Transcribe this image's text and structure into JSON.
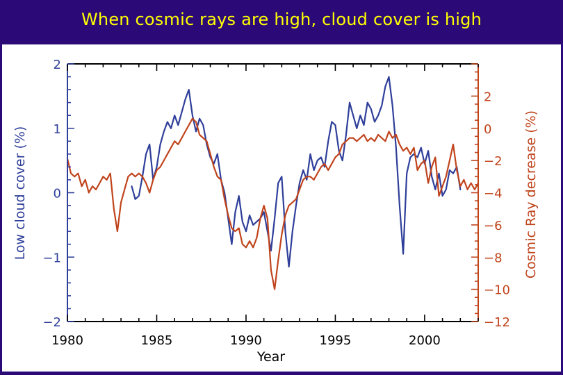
{
  "slide": {
    "title": "When cosmic rays are high, cloud cover is high"
  },
  "colors": {
    "title_bar": "#2b0a78",
    "title_text": "#ffff00",
    "cloud_series": "#2f3f9a",
    "cosmic_series": "#c0441c",
    "axis_black": "#000000"
  },
  "chart_data": {
    "type": "line",
    "xlabel": "Year",
    "ylabel_left": "Low cloud cover (%)",
    "ylabel_right": "Cosmic Ray decrease (%)",
    "xlim": [
      1980,
      2003
    ],
    "ylim_left": [
      -2,
      2
    ],
    "ylim_right": [
      -12,
      4
    ],
    "x_ticks": [
      1980,
      1985,
      1990,
      1995,
      2000
    ],
    "y_ticks_left": [
      "2",
      "1",
      "0",
      "−1",
      "−2"
    ],
    "y_ticks_left_values": [
      2,
      1,
      0,
      -1,
      -2
    ],
    "y_ticks_right": [
      "2",
      "0",
      "−2",
      "−4",
      "−6",
      "−8",
      "−10",
      "−12"
    ],
    "y_ticks_right_values": [
      2,
      0,
      -2,
      -4,
      -6,
      -8,
      -10,
      -12
    ],
    "grid": false,
    "legend": "none",
    "series": [
      {
        "axis": "left",
        "color": "#2f3f9a",
        "x": [
          1983.6,
          1983.8,
          1984.0,
          1984.2,
          1984.4,
          1984.6,
          1984.8,
          1985.0,
          1985.2,
          1985.4,
          1985.6,
          1985.8,
          1986.0,
          1986.2,
          1986.4,
          1986.6,
          1986.8,
          1987.0,
          1987.2,
          1987.4,
          1987.6,
          1987.8,
          1988.0,
          1988.2,
          1988.4,
          1988.6,
          1988.8,
          1989.0,
          1989.2,
          1989.4,
          1989.6,
          1989.8,
          1990.0,
          1990.2,
          1990.4,
          1990.6,
          1990.8,
          1991.0,
          1991.2,
          1991.4,
          1991.6,
          1991.8,
          1992.0,
          1992.2,
          1992.4,
          1992.6,
          1992.8,
          1993.0,
          1993.2,
          1993.4,
          1993.6,
          1993.8,
          1994.0,
          1994.2,
          1994.4,
          1994.6,
          1994.8,
          1995.0,
          1995.2,
          1995.4,
          1995.6,
          1995.8,
          1996.0,
          1996.2,
          1996.4,
          1996.6,
          1996.8,
          1997.0,
          1997.2,
          1997.4,
          1997.6,
          1997.8,
          1998.0,
          1998.2,
          1998.4,
          1998.6,
          1998.8,
          1999.0,
          1999.2,
          1999.4,
          1999.6,
          1999.8,
          2000.0,
          2000.2,
          2000.4,
          2000.6,
          2000.8,
          2001.0,
          2001.2,
          2001.4,
          2001.6,
          2001.8,
          2002.0
        ],
        "values": [
          0.1,
          -0.1,
          -0.05,
          0.25,
          0.6,
          0.75,
          0.2,
          0.4,
          0.75,
          0.95,
          1.1,
          1.0,
          1.2,
          1.05,
          1.25,
          1.45,
          1.6,
          1.2,
          0.95,
          1.15,
          1.05,
          0.75,
          0.55,
          0.45,
          0.6,
          0.2,
          0.0,
          -0.4,
          -0.8,
          -0.3,
          -0.05,
          -0.45,
          -0.6,
          -0.35,
          -0.5,
          -0.45,
          -0.4,
          -0.3,
          -0.6,
          -0.9,
          -0.4,
          0.15,
          0.25,
          -0.6,
          -1.15,
          -0.6,
          -0.2,
          0.15,
          0.35,
          0.2,
          0.6,
          0.35,
          0.5,
          0.55,
          0.4,
          0.8,
          1.1,
          1.05,
          0.65,
          0.5,
          0.9,
          1.4,
          1.2,
          1.0,
          1.2,
          1.05,
          1.4,
          1.3,
          1.1,
          1.2,
          1.35,
          1.65,
          1.8,
          1.35,
          0.7,
          -0.2,
          -0.95,
          0.3,
          0.55,
          0.6,
          0.55,
          0.7,
          0.45,
          0.65,
          0.25,
          0.05,
          0.3,
          -0.05,
          0.05,
          0.35,
          0.3,
          0.4,
          0.05
        ]
      },
      {
        "axis": "right",
        "color": "#c0441c",
        "x": [
          1980.0,
          1980.2,
          1980.4,
          1980.6,
          1980.8,
          1981.0,
          1981.2,
          1981.4,
          1981.6,
          1981.8,
          1982.0,
          1982.2,
          1982.4,
          1982.6,
          1982.8,
          1983.0,
          1983.2,
          1983.4,
          1983.6,
          1983.8,
          1984.0,
          1984.2,
          1984.4,
          1984.6,
          1984.8,
          1985.0,
          1985.2,
          1985.4,
          1985.6,
          1985.8,
          1986.0,
          1986.2,
          1986.4,
          1986.6,
          1986.8,
          1987.0,
          1987.2,
          1987.4,
          1987.6,
          1987.8,
          1988.0,
          1988.2,
          1988.4,
          1988.6,
          1988.8,
          1989.0,
          1989.2,
          1989.4,
          1989.6,
          1989.8,
          1990.0,
          1990.2,
          1990.4,
          1990.6,
          1990.8,
          1991.0,
          1991.2,
          1991.4,
          1991.6,
          1991.8,
          1992.0,
          1992.2,
          1992.4,
          1992.6,
          1992.8,
          1993.0,
          1993.2,
          1993.4,
          1993.6,
          1993.8,
          1994.0,
          1994.2,
          1994.4,
          1994.6,
          1994.8,
          1995.0,
          1995.2,
          1995.4,
          1995.6,
          1995.8,
          1996.0,
          1996.2,
          1996.4,
          1996.6,
          1996.8,
          1997.0,
          1997.2,
          1997.4,
          1997.6,
          1997.8,
          1998.0,
          1998.2,
          1998.4,
          1998.6,
          1998.8,
          1999.0,
          1999.2,
          1999.4,
          1999.6,
          1999.8,
          2000.0,
          2000.2,
          2000.4,
          2000.6,
          2000.8,
          2001.0,
          2001.2,
          2001.4,
          2001.6,
          2001.8,
          2002.0,
          2002.2,
          2002.4,
          2002.6,
          2002.8,
          2003.0
        ],
        "values": [
          -1.9,
          -2.8,
          -3.0,
          -2.8,
          -3.6,
          -3.2,
          -4.0,
          -3.6,
          -3.8,
          -3.4,
          -3.0,
          -3.2,
          -2.8,
          -5.0,
          -6.4,
          -4.6,
          -3.8,
          -3.0,
          -2.8,
          -3.0,
          -2.8,
          -3.0,
          -3.4,
          -4.0,
          -3.2,
          -2.6,
          -2.4,
          -2.0,
          -1.6,
          -1.2,
          -0.8,
          -1.0,
          -0.6,
          -0.2,
          0.2,
          0.6,
          0.4,
          -0.4,
          -0.6,
          -0.8,
          -1.6,
          -2.4,
          -3.0,
          -3.2,
          -4.4,
          -5.4,
          -6.2,
          -6.4,
          -6.2,
          -7.2,
          -7.4,
          -7.0,
          -7.4,
          -6.8,
          -5.6,
          -4.8,
          -5.6,
          -8.8,
          -10.0,
          -8.2,
          -6.6,
          -5.4,
          -4.8,
          -4.6,
          -4.4,
          -3.8,
          -3.2,
          -3.0,
          -3.0,
          -3.2,
          -2.8,
          -2.4,
          -2.2,
          -2.6,
          -2.2,
          -1.8,
          -1.6,
          -1.0,
          -0.8,
          -0.6,
          -0.6,
          -0.8,
          -0.6,
          -0.4,
          -0.8,
          -0.6,
          -0.8,
          -0.4,
          -0.6,
          -0.8,
          -0.2,
          -0.6,
          -0.4,
          -1.0,
          -1.4,
          -1.2,
          -1.6,
          -1.2,
          -2.6,
          -2.2,
          -2.0,
          -3.4,
          -2.4,
          -1.8,
          -4.2,
          -3.6,
          -3.0,
          -2.0,
          -1.0,
          -2.6,
          -3.6,
          -3.2,
          -3.8,
          -3.4,
          -3.8,
          -3.4
        ]
      }
    ]
  }
}
